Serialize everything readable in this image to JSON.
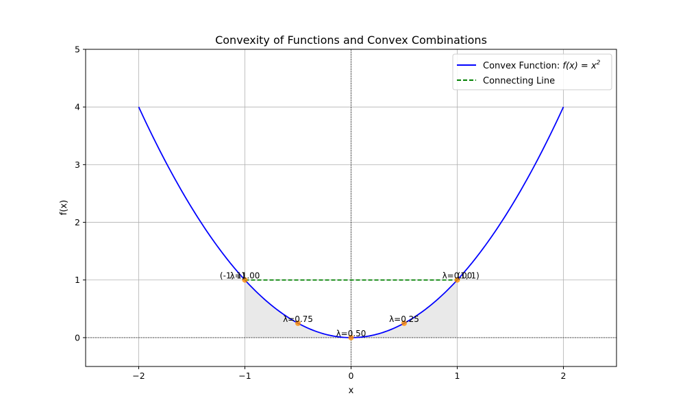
{
  "chart_data": {
    "type": "line",
    "title": "Convexity of Functions and Convex Combinations",
    "xlabel": "x",
    "ylabel": "f(x)",
    "xlim": [
      -2.5,
      2.5
    ],
    "ylim": [
      -0.5,
      5
    ],
    "xticks": [
      -2,
      -1,
      0,
      1,
      2
    ],
    "xtick_labels": [
      "−2",
      "−1",
      "0",
      "1",
      "2"
    ],
    "yticks": [
      0,
      1,
      2,
      3,
      4,
      5
    ],
    "ytick_labels": [
      "0",
      "1",
      "2",
      "3",
      "4",
      "5"
    ],
    "grid": true,
    "legend_position": "top-right",
    "function": {
      "name_prefix": "Convex Function: ",
      "name_math": "f(x) = x",
      "name_sup": "2",
      "x_range": [
        -2,
        2
      ],
      "color": "#0000ff"
    },
    "connecting_line": {
      "name": "Connecting Line",
      "x": [
        -1,
        1
      ],
      "y": [
        1,
        1
      ],
      "color": "#008000"
    },
    "fill_region": {
      "x_range": [
        -1,
        1
      ],
      "color": "#d3d3d3"
    },
    "points": {
      "color": "#ff8c00",
      "items": [
        {
          "x": -1,
          "y": 1,
          "label": "λ=1.00"
        },
        {
          "x": -0.5,
          "y": 0.25,
          "label": "λ=0.75"
        },
        {
          "x": 0,
          "y": 0,
          "label": "λ=0.50"
        },
        {
          "x": 0.5,
          "y": 0.25,
          "label": "λ=0.25"
        },
        {
          "x": 1,
          "y": 1,
          "label": "λ=0.00"
        }
      ]
    },
    "endpoint_labels": [
      {
        "x": -1,
        "y": 1,
        "label": "(-1, 1)"
      },
      {
        "x": 1,
        "y": 1,
        "label": "(1, 1)"
      }
    ]
  }
}
